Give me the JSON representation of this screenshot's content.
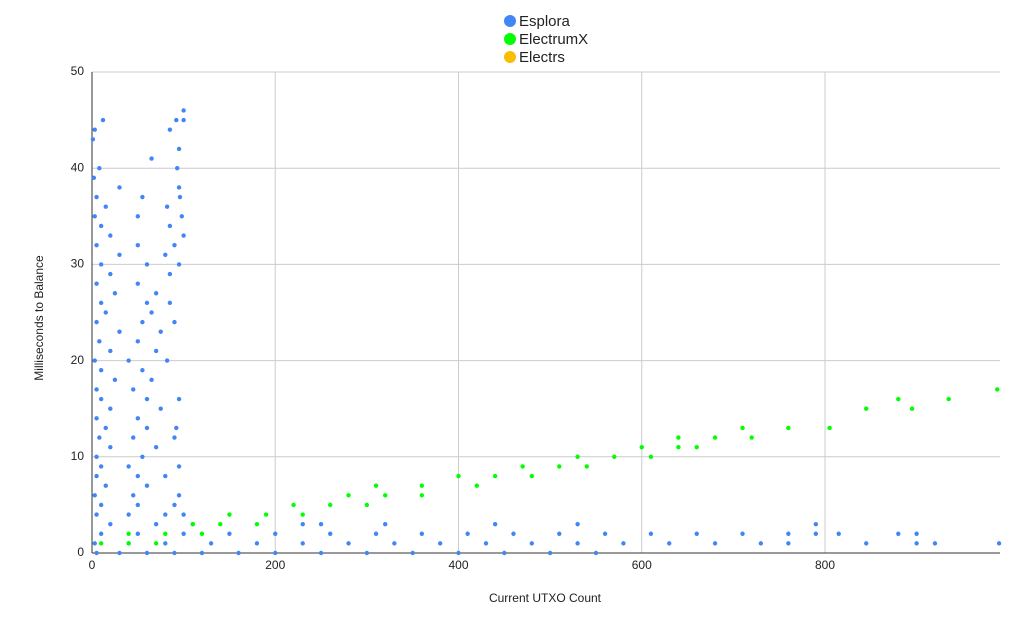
{
  "chart_data": {
    "type": "scatter",
    "x_label": "Current UTXO Count",
    "y_label": "Milliseconds to Balance",
    "xlim": [
      0,
      991
    ],
    "ylim": [
      0,
      50
    ],
    "xticks": [
      0,
      200,
      400,
      600,
      800
    ],
    "yticks": [
      0,
      10,
      20,
      30,
      40,
      50
    ],
    "grid": true,
    "legend_position": "top",
    "series": [
      {
        "name": "Esplora",
        "color": "#4285f4",
        "x": [
          5,
          30,
          60,
          90,
          120,
          160,
          200,
          250,
          300,
          350,
          400,
          450,
          500,
          550,
          3,
          40,
          80,
          130,
          180,
          230,
          280,
          330,
          380,
          430,
          480,
          530,
          580,
          630,
          680,
          730,
          760,
          845,
          900,
          920,
          990,
          10,
          50,
          100,
          150,
          200,
          260,
          310,
          360,
          410,
          460,
          510,
          560,
          610,
          660,
          710,
          760,
          790,
          815,
          880,
          900,
          20,
          70,
          110,
          230,
          250,
          320,
          440,
          530,
          790,
          5,
          40,
          80,
          100,
          10,
          50,
          90,
          3,
          45,
          95,
          15,
          60,
          5,
          50,
          80,
          10,
          40,
          95,
          5,
          55,
          20,
          70,
          8,
          45,
          90,
          15,
          60,
          92,
          5,
          50,
          20,
          75,
          10,
          60,
          95,
          5,
          45,
          25,
          65,
          10,
          55,
          3,
          40,
          82,
          20,
          70,
          8,
          50,
          30,
          75,
          5,
          55,
          90,
          15,
          65,
          10,
          60,
          85,
          25,
          70,
          5,
          50,
          20,
          85,
          10,
          60,
          95,
          30,
          80,
          5,
          50,
          90,
          20,
          100,
          10,
          85,
          3,
          50,
          98,
          15,
          82,
          5,
          55,
          96,
          30,
          95,
          2,
          8,
          93,
          65,
          95,
          1,
          3,
          85,
          12,
          92,
          100,
          100
        ],
        "values": [
          0,
          0,
          0,
          0,
          0,
          0,
          0,
          0,
          0,
          0,
          0,
          0,
          0,
          0,
          1,
          1,
          1,
          1,
          1,
          1,
          1,
          1,
          1,
          1,
          1,
          1,
          1,
          1,
          1,
          1,
          1,
          1,
          1,
          1,
          1,
          2,
          2,
          2,
          2,
          2,
          2,
          2,
          2,
          2,
          2,
          2,
          2,
          2,
          2,
          2,
          2,
          2,
          2,
          2,
          2,
          3,
          3,
          3,
          3,
          3,
          3,
          3,
          3,
          3,
          4,
          4,
          4,
          4,
          5,
          5,
          5,
          6,
          6,
          6,
          7,
          7,
          8,
          8,
          8,
          9,
          9,
          9,
          10,
          10,
          11,
          11,
          12,
          12,
          12,
          13,
          13,
          13,
          14,
          14,
          15,
          15,
          16,
          16,
          16,
          17,
          17,
          18,
          18,
          19,
          19,
          20,
          20,
          20,
          21,
          21,
          22,
          22,
          23,
          23,
          24,
          24,
          24,
          25,
          25,
          26,
          26,
          26,
          27,
          27,
          28,
          28,
          29,
          29,
          30,
          30,
          30,
          31,
          31,
          32,
          32,
          32,
          33,
          33,
          34,
          34,
          35,
          35,
          35,
          36,
          36,
          37,
          37,
          37,
          38,
          38,
          39,
          40,
          40,
          41,
          42,
          43,
          44,
          44,
          45,
          45,
          45,
          46
        ]
      },
      {
        "name": "ElectrumX",
        "color": "#00ff00",
        "x": [
          10,
          40,
          70,
          40,
          80,
          120,
          110,
          140,
          180,
          150,
          190,
          230,
          220,
          260,
          300,
          280,
          320,
          360,
          310,
          360,
          420,
          400,
          440,
          480,
          470,
          510,
          540,
          530,
          570,
          610,
          600,
          640,
          660,
          640,
          680,
          720,
          710,
          760,
          805,
          845,
          895,
          880,
          935,
          988
        ],
        "values": [
          1,
          1,
          1,
          2,
          2,
          2,
          3,
          3,
          3,
          4,
          4,
          4,
          5,
          5,
          5,
          6,
          6,
          6,
          7,
          7,
          7,
          8,
          8,
          8,
          9,
          9,
          9,
          10,
          10,
          10,
          11,
          11,
          11,
          12,
          12,
          12,
          13,
          13,
          13,
          15,
          15,
          16,
          16,
          17
        ]
      },
      {
        "name": "Electrs",
        "color": "#fbbc04",
        "x": [],
        "values": []
      }
    ]
  }
}
